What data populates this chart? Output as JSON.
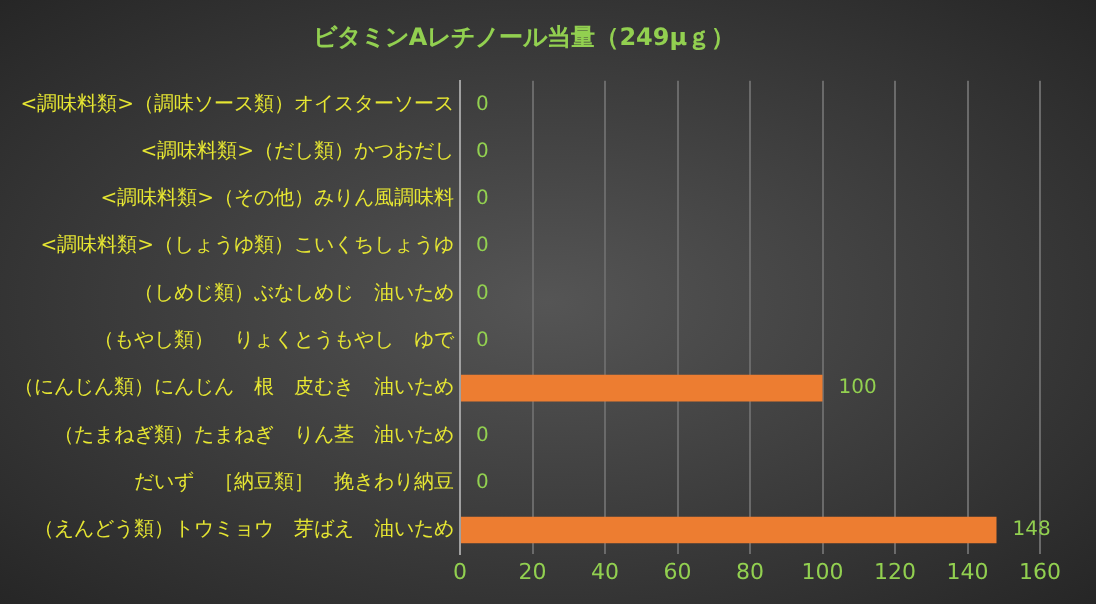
{
  "chart_data": {
    "type": "bar",
    "orientation": "horizontal",
    "title": "ビタミンAレチノール当量（249μｇ）",
    "categories": [
      "<調味料類>（調味ソース類）オイスターソース",
      "<調味料類>（だし類）かつおだし",
      "<調味料類>（その他）みりん風調味料",
      "<調味料類>（しょうゆ類）こいくちしょうゆ",
      "（しめじ類）ぶなしめじ　油いため",
      "（もやし類）　りょくとうもやし　ゆで",
      "（にんじん類）にんじん　根　皮むき　油いため",
      "（たまねぎ類）たまねぎ　りん茎　油いため",
      "だいず　［納豆類］　挽きわり納豆",
      "（えんどう類）トウミョウ　芽ばえ　油いため"
    ],
    "values": [
      0,
      0,
      0,
      0,
      0,
      0,
      100,
      0,
      0,
      148
    ],
    "color": "#ed7d31",
    "xlim": [
      0,
      160
    ],
    "xticks": [
      0,
      20,
      40,
      60,
      80,
      100,
      120,
      140,
      160
    ],
    "grid": "x",
    "data_labels": true,
    "legend": false
  }
}
